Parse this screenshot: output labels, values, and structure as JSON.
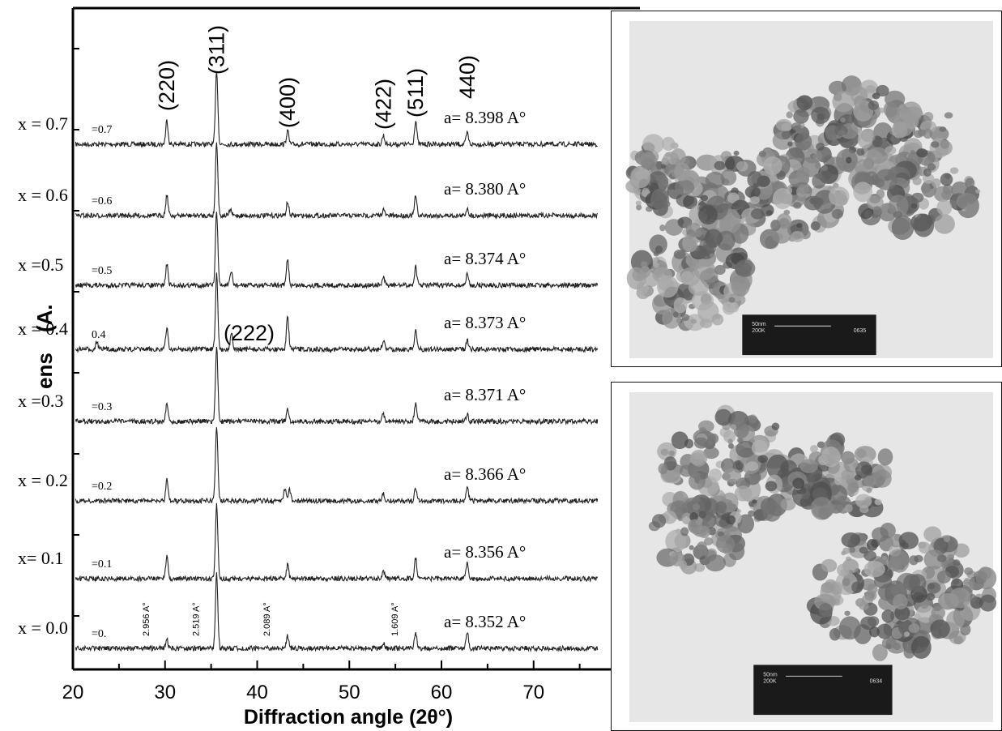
{
  "chart_data": {
    "type": "line",
    "xlabel": "Diffraction angle (2θ°)",
    "ylabel_visible_fragment": "(A.",
    "ylabel_fragment_2": "ens",
    "xlim": [
      20,
      78
    ],
    "x_ticks": [
      "20",
      "30",
      "40",
      "50",
      "60",
      "70"
    ],
    "hkl_labels": [
      {
        "text": "(220)",
        "x": 30.2
      },
      {
        "text": "(311)",
        "x": 35.6
      },
      {
        "text": "(400)",
        "x": 43.3
      },
      {
        "text": "(422)",
        "x": 53.7
      },
      {
        "text": "(511)",
        "x": 57.2
      },
      {
        "text": "440)",
        "x": 62.8
      },
      {
        "text": "(222)",
        "x": 37.2
      }
    ],
    "d_spacings": [
      {
        "text": "2.956 A°",
        "x": 30.2
      },
      {
        "text": "2.519 A°",
        "x": 35.6
      },
      {
        "text": "2.089 A°",
        "x": 43.3
      },
      {
        "text": "1.609 A°",
        "x": 57.2
      }
    ],
    "series": [
      {
        "name": "x = 0.7",
        "inner": "=0.7",
        "lattice": "a= 8.398 A°",
        "peaks": [
          [
            30.2,
            0.32
          ],
          [
            35.6,
            1.0
          ],
          [
            43.3,
            0.18
          ],
          [
            53.7,
            0.12
          ],
          [
            57.2,
            0.32
          ],
          [
            62.8,
            0.15
          ]
        ]
      },
      {
        "name": "x = 0.6",
        "inner": "=0.6",
        "lattice": "a= 8.380 A°",
        "peaks": [
          [
            30.2,
            0.28
          ],
          [
            35.6,
            1.0
          ],
          [
            37.1,
            0.08
          ],
          [
            43.3,
            0.18
          ],
          [
            53.7,
            0.08
          ],
          [
            57.2,
            0.26
          ],
          [
            62.8,
            0.1
          ]
        ]
      },
      {
        "name": "x =0.5",
        "inner": "=0.5",
        "lattice": "a= 8.374 A°",
        "peaks": [
          [
            30.2,
            0.28
          ],
          [
            35.6,
            1.0
          ],
          [
            37.2,
            0.18
          ],
          [
            43.3,
            0.35
          ],
          [
            53.7,
            0.1
          ],
          [
            57.2,
            0.25
          ],
          [
            62.8,
            0.15
          ]
        ]
      },
      {
        "name": "x = 0.4",
        "inner": "0.4",
        "lattice": "a= 8.373 A°",
        "peaks": [
          [
            22.6,
            0.1
          ],
          [
            30.2,
            0.28
          ],
          [
            35.6,
            1.0
          ],
          [
            37.2,
            0.22
          ],
          [
            43.3,
            0.42
          ],
          [
            53.7,
            0.12
          ],
          [
            57.2,
            0.27
          ],
          [
            62.8,
            0.12
          ]
        ]
      },
      {
        "name": "x =0.3",
        "inner": "=0.3",
        "lattice": "a= 8.371 A°",
        "peaks": [
          [
            30.2,
            0.25
          ],
          [
            35.6,
            1.0
          ],
          [
            43.3,
            0.18
          ],
          [
            53.7,
            0.1
          ],
          [
            57.2,
            0.25
          ],
          [
            62.8,
            0.1
          ]
        ]
      },
      {
        "name": "x = 0.2",
        "inner": "=0.2",
        "lattice": "a= 8.366 A°",
        "peaks": [
          [
            30.2,
            0.3
          ],
          [
            35.6,
            1.0
          ],
          [
            43.0,
            0.16
          ],
          [
            43.5,
            0.16
          ],
          [
            53.7,
            0.1
          ],
          [
            57.2,
            0.18
          ],
          [
            62.8,
            0.2
          ]
        ]
      },
      {
        "name": "x= 0.1",
        "inner": "=0.1",
        "lattice": "a= 8.356 A°",
        "peaks": [
          [
            30.2,
            0.3
          ],
          [
            35.6,
            1.0
          ],
          [
            43.3,
            0.18
          ],
          [
            53.7,
            0.1
          ],
          [
            57.2,
            0.28
          ],
          [
            62.8,
            0.2
          ]
        ]
      },
      {
        "name": "x = 0.0",
        "inner": "=0.",
        "lattice": "a= 8.352 A°",
        "peaks": [
          [
            30.2,
            0.12
          ],
          [
            35.6,
            1.0
          ],
          [
            43.3,
            0.16
          ],
          [
            53.7,
            0.08
          ],
          [
            57.2,
            0.22
          ],
          [
            62.8,
            0.22
          ]
        ]
      }
    ]
  },
  "tem": {
    "scale_text": "50nm",
    "mag_text": "200K",
    "code_top": "0635",
    "code_bottom": "0634"
  }
}
